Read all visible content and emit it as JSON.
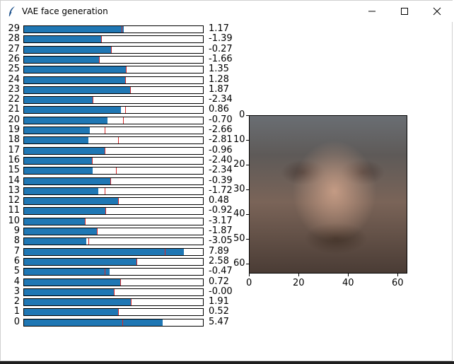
{
  "window": {
    "title": "VAE face generation"
  },
  "chart_data": [
    {
      "type": "bar",
      "orientation": "horizontal",
      "categories": [
        "29",
        "28",
        "27",
        "26",
        "25",
        "24",
        "23",
        "22",
        "21",
        "20",
        "19",
        "18",
        "17",
        "16",
        "15",
        "14",
        "13",
        "12",
        "11",
        "10",
        "9",
        "8",
        "7",
        "6",
        "5",
        "4",
        "3",
        "2",
        "1",
        "0"
      ],
      "values": [
        1.17,
        -1.39,
        -0.27,
        -1.66,
        1.35,
        1.28,
        1.87,
        -2.34,
        0.86,
        -0.7,
        -2.66,
        -2.81,
        -0.96,
        -2.4,
        -2.34,
        -0.39,
        -1.72,
        0.48,
        -0.92,
        -3.17,
        -1.87,
        -3.05,
        7.89,
        2.58,
        -0.47,
        0.72,
        -0.0,
        1.91,
        0.52,
        5.47
      ],
      "value_labels": [
        "1.17",
        "-1.39",
        "-0.27",
        "-1.66",
        "1.35",
        "1.28",
        "1.87",
        "-2.34",
        "0.86",
        "-0.70",
        "-2.66",
        "-2.81",
        "-0.96",
        "-2.40",
        "-2.34",
        "-0.39",
        "-1.72",
        "0.48",
        "-0.92",
        "-3.17",
        "-1.87",
        "-3.05",
        "7.89",
        "2.58",
        "-0.47",
        "0.72",
        "-0.00",
        "1.91",
        "0.52",
        "5.47"
      ],
      "xlim": [
        -10,
        10
      ],
      "markers": [
        0.9,
        -1.39,
        -0.27,
        -1.66,
        1.35,
        1.28,
        1.87,
        -2.34,
        1.3,
        1.1,
        -1.0,
        0.5,
        -0.96,
        -2.4,
        0.3,
        -0.39,
        -1.0,
        0.48,
        -0.92,
        -3.17,
        -1.87,
        -2.8,
        5.7,
        2.58,
        -1.0,
        0.72,
        -0.0,
        1.91,
        0.52,
        1.0
      ]
    },
    {
      "type": "image",
      "x_ticks": [
        0,
        20,
        40,
        60
      ],
      "y_ticks": [
        0,
        10,
        20,
        30,
        40,
        50,
        60
      ],
      "xlim": [
        0,
        64
      ],
      "ylim": [
        64,
        0
      ]
    }
  ]
}
